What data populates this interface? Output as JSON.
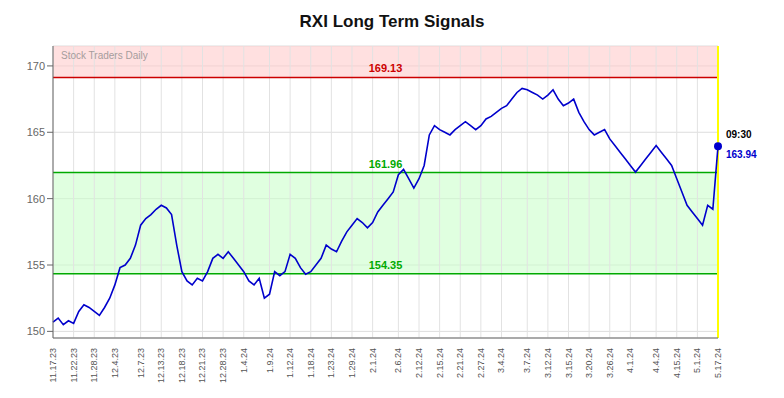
{
  "chart_data": {
    "type": "line",
    "title": "RXI Long Term Signals",
    "categories": [
      "11.17.23",
      null,
      null,
      null,
      "11.22.23",
      null,
      null,
      null,
      "11.28.23",
      null,
      null,
      null,
      "12.4.23",
      null,
      null,
      null,
      null,
      "12.7.23",
      null,
      null,
      null,
      "12.13.23",
      null,
      null,
      null,
      "12.18.23",
      null,
      null,
      null,
      "12.21.23",
      null,
      null,
      null,
      "12.28.23",
      null,
      null,
      null,
      "1.4.24",
      null,
      null,
      null,
      null,
      "1.9.24",
      null,
      null,
      null,
      "1.12.24",
      null,
      null,
      null,
      "1.18.24",
      null,
      null,
      null,
      "1.23.24",
      null,
      null,
      null,
      "1.29.24",
      null,
      null,
      null,
      "2.1.24",
      null,
      null,
      null,
      null,
      "2.6.24",
      null,
      null,
      null,
      "2.12.24",
      null,
      null,
      null,
      "2.15.24",
      null,
      null,
      null,
      "2.21.24",
      null,
      null,
      null,
      "2.27.24",
      null,
      null,
      null,
      "3.4.24",
      null,
      null,
      null,
      null,
      "3.7.24",
      null,
      null,
      null,
      "3.12.24",
      null,
      null,
      null,
      "3.15.24",
      null,
      null,
      null,
      "3.20.24",
      null,
      null,
      null,
      "3.26.24",
      null,
      null,
      null,
      "4.1.24",
      null,
      null,
      null,
      null,
      "4.4.24",
      null,
      null,
      null,
      "4.15.24",
      null,
      null,
      null,
      "5.1.24",
      null,
      null,
      null,
      "5.17.24"
    ],
    "values": [
      150.7,
      151.0,
      150.5,
      150.8,
      150.6,
      151.5,
      152.0,
      151.8,
      151.5,
      151.2,
      151.8,
      152.5,
      153.5,
      154.8,
      155.0,
      155.5,
      156.5,
      158.0,
      158.5,
      158.8,
      159.2,
      159.5,
      159.3,
      158.8,
      156.5,
      154.5,
      153.8,
      153.5,
      154.0,
      153.8,
      154.5,
      155.5,
      155.8,
      155.5,
      156.0,
      155.5,
      155.0,
      154.5,
      153.8,
      153.5,
      154.0,
      152.5,
      152.8,
      154.5,
      154.2,
      154.5,
      155.8,
      155.5,
      154.8,
      154.3,
      154.5,
      155.0,
      155.5,
      156.5,
      156.2,
      156.0,
      156.8,
      157.5,
      158.0,
      158.5,
      158.2,
      157.8,
      158.2,
      159.0,
      159.5,
      160.0,
      160.5,
      161.8,
      162.2,
      161.5,
      160.8,
      161.5,
      162.5,
      164.8,
      165.5,
      165.2,
      165.0,
      164.8,
      165.2,
      165.5,
      165.8,
      165.5,
      165.2,
      165.5,
      166.0,
      166.2,
      166.5,
      166.8,
      167.0,
      167.5,
      168.0,
      168.3,
      168.2,
      168.0,
      167.8,
      167.5,
      167.8,
      168.2,
      167.5,
      167.0,
      167.2,
      167.5,
      166.5,
      165.8,
      165.2,
      164.8,
      165.0,
      165.2,
      164.5,
      164.0,
      163.5,
      163.0,
      162.5,
      162.0,
      162.5,
      163.0,
      163.5,
      164.0,
      163.5,
      163.0,
      162.5,
      161.5,
      160.5,
      159.5,
      159.0,
      158.5,
      158.0,
      159.5,
      159.2,
      163.94
    ],
    "color": "#0000cc",
    "ylim": [
      149.5,
      171.5
    ],
    "yticks": [
      150,
      155,
      160,
      165,
      170
    ],
    "grid": true,
    "reference_lines": [
      {
        "value": 169.13,
        "color": "#cc0000"
      },
      {
        "value": 161.96,
        "color": "#00aa00"
      },
      {
        "value": 154.35,
        "color": "#00aa00"
      }
    ],
    "bands": [
      {
        "from": 169.13,
        "to": 171.5,
        "color": "#ffcccc"
      },
      {
        "from": 154.35,
        "to": 161.96,
        "color": "#ccffcc"
      }
    ],
    "current": {
      "label": "09:30",
      "value": 163.94,
      "color": "#ffff00"
    },
    "annotations": [
      "Stock Traders Daily"
    ]
  }
}
